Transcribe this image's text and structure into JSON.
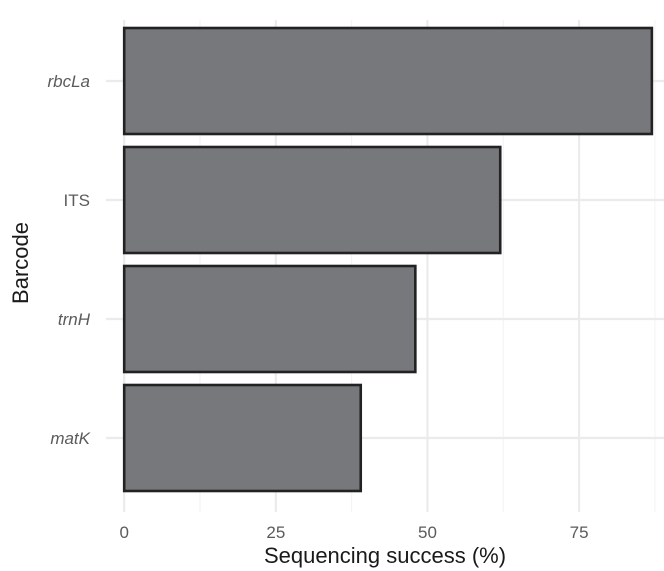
{
  "chart_data": {
    "type": "bar",
    "orientation": "horizontal",
    "categories": [
      "rbcLa",
      "ITS",
      "trnH",
      "matK"
    ],
    "category_italic": [
      true,
      false,
      true,
      true
    ],
    "values": [
      87,
      62,
      48,
      39
    ],
    "xlabel": "Sequencing success (%)",
    "ylabel": "Barcode",
    "xlim": [
      -3,
      89
    ],
    "x_ticks": [
      0,
      25,
      50,
      75
    ],
    "grid": true,
    "theme": "minimal",
    "colors": {
      "bar_fill": "#76787b",
      "bar_outline": "#222222",
      "grid_major": "#ebebeb",
      "grid_minor": "#f3f3f3"
    }
  }
}
